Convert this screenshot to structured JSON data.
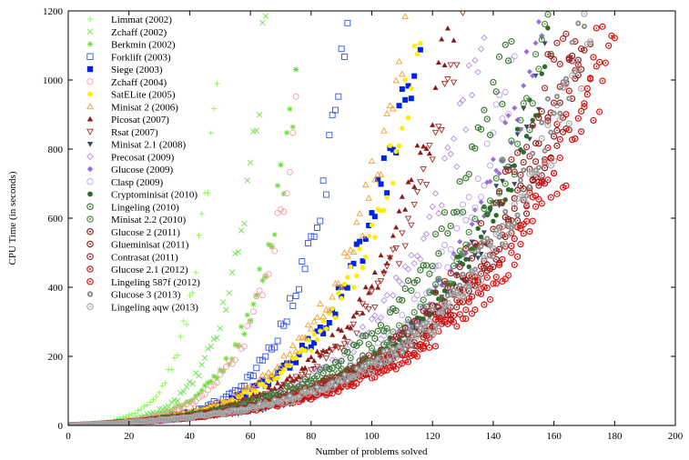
{
  "chart_data": {
    "type": "scatter",
    "title": "",
    "xlabel": "Number of problems solved",
    "ylabel": "CPU Time (in seconds)",
    "xlim": [
      0,
      200
    ],
    "ylim": [
      0,
      1200
    ],
    "x_ticks": [
      0,
      20,
      40,
      60,
      80,
      100,
      120,
      140,
      160,
      180,
      200
    ],
    "y_ticks": [
      0,
      200,
      400,
      600,
      800,
      1000,
      1200
    ],
    "legend_position": "top-left",
    "grid": false,
    "series": [
      {
        "name": "Limmat (2002)",
        "marker": "plus",
        "color": "#7fff3f",
        "n": 50,
        "tmax": 1190,
        "k": 6
      },
      {
        "name": "Zchaff (2002)",
        "marker": "x",
        "color": "#6fe04f",
        "n": 65,
        "tmax": 1190,
        "k": 6
      },
      {
        "name": "Berkmin (2002)",
        "marker": "asterisk",
        "color": "#66dd33",
        "n": 75,
        "tmax": 1000,
        "k": 5.5
      },
      {
        "name": "Forklift (2003)",
        "marker": "square-open",
        "color": "#3355ee",
        "n": 92,
        "tmax": 1170,
        "k": 6
      },
      {
        "name": "Siege (2003)",
        "marker": "square-filled",
        "color": "#0022ee",
        "n": 116,
        "tmax": 1195,
        "k": 5
      },
      {
        "name": "Zchaff (2004)",
        "marker": "circle-open",
        "color": "#f4a0a0",
        "n": 75,
        "tmax": 890,
        "k": 5.5
      },
      {
        "name": "SatELite (2005)",
        "marker": "circle-filled",
        "color": "#ffee00",
        "n": 117,
        "tmax": 1195,
        "k": 5
      },
      {
        "name": "Minisat 2 (2006)",
        "marker": "triangle-open",
        "color": "#f0a030",
        "n": 112,
        "tmax": 1195,
        "k": 5
      },
      {
        "name": "Picosat (2007)",
        "marker": "triangle-filled",
        "color": "#8b1a1a",
        "n": 127,
        "tmax": 1195,
        "k": 5
      },
      {
        "name": "Rsat (2007)",
        "marker": "triangledown-open",
        "color": "#a0302a",
        "n": 131,
        "tmax": 1195,
        "k": 5
      },
      {
        "name": "Minisat 2.1 (2008)",
        "marker": "triangledown-filled",
        "color": "#334d66",
        "n": 157,
        "tmax": 1060,
        "k": 5
      },
      {
        "name": "Precosat (2009)",
        "marker": "diamond-open",
        "color": "#b48fe0",
        "n": 137,
        "tmax": 1150,
        "k": 5
      },
      {
        "name": "Glucose (2009)",
        "marker": "diamond-filled",
        "color": "#9a6be0",
        "n": 156,
        "tmax": 1180,
        "k": 5
      },
      {
        "name": "Clasp (2009)",
        "marker": "circle-open",
        "color": "#b9a0ee",
        "n": 147,
        "tmax": 1060,
        "k": 5
      },
      {
        "name": "Cryptominisat (2010)",
        "marker": "circle-filled",
        "color": "#2e6b2a",
        "n": 158,
        "tmax": 1060,
        "k": 4.5
      },
      {
        "name": "Lingeling (2010)",
        "marker": "circle-open-dot",
        "color": "#3a7a32",
        "n": 146,
        "tmax": 1130,
        "k": 4.5
      },
      {
        "name": "Minisat 2.2 (2010)",
        "marker": "circle-open-dot",
        "color": "#4a8a42",
        "n": 160,
        "tmax": 1160,
        "k": 4.5
      },
      {
        "name": "Glucose 2 (2011)",
        "marker": "circle-open-dot",
        "color": "#8b1d1d",
        "n": 172,
        "tmax": 1190,
        "k": 4.5
      },
      {
        "name": "Glueminisat (2011)",
        "marker": "circle-open-dot",
        "color": "#9a2020",
        "n": 170,
        "tmax": 1120,
        "k": 4.5
      },
      {
        "name": "Contrasat (2011)",
        "marker": "circle-open-dot",
        "color": "#a02828",
        "n": 165,
        "tmax": 1200,
        "k": 4.5
      },
      {
        "name": "Glucose 2.1 (2012)",
        "marker": "circle-open-dot",
        "color": "#cc1111",
        "n": 176,
        "tmax": 1180,
        "k": 4.5
      },
      {
        "name": "Lingeling 587f (2012)",
        "marker": "circle-open-dot",
        "color": "#dd1010",
        "n": 182,
        "tmax": 1195,
        "k": 4.5
      },
      {
        "name": "Glucose 3 (2013)",
        "marker": "circle-filled-dot",
        "color": "#909090",
        "n": 170,
        "tmax": 1200,
        "k": 4.5
      },
      {
        "name": "Lingeling aqw (2013)",
        "marker": "circle-open-dot",
        "color": "#a8a8a8",
        "n": 172,
        "tmax": 1160,
        "k": 4.5
      }
    ]
  }
}
